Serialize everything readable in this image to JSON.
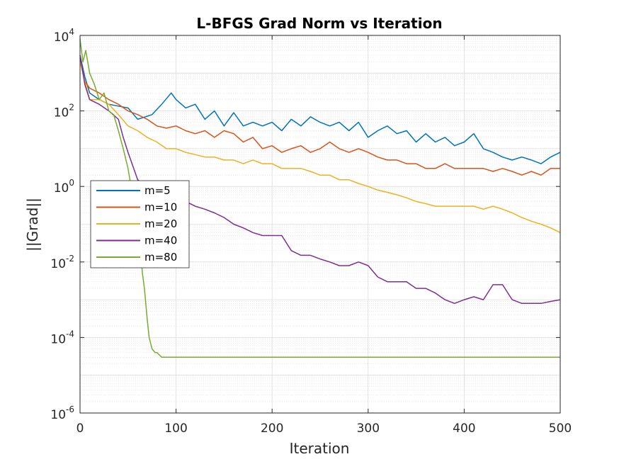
{
  "chart_data": {
    "type": "line",
    "title": "L-BFGS Grad Norm vs Iteration",
    "xlabel": "Iteration",
    "ylabel": "||Grad||",
    "xlim": [
      0,
      500
    ],
    "ylim": [
      1e-06,
      10000.0
    ],
    "yscale": "log",
    "grid": true,
    "minor_grid": true,
    "legend_position": "middle-left",
    "x_ticks": [
      "0",
      "100",
      "200",
      "300",
      "400",
      "500"
    ],
    "y_ticks": [
      {
        "base": "10",
        "exp": "-6"
      },
      {
        "base": "10",
        "exp": "-4"
      },
      {
        "base": "10",
        "exp": "-2"
      },
      {
        "base": "10",
        "exp": "0"
      },
      {
        "base": "10",
        "exp": "2"
      },
      {
        "base": "10",
        "exp": "4"
      }
    ],
    "series": [
      {
        "name": "m=5",
        "color": "#0072BD",
        "points": [
          [
            0,
            3000
          ],
          [
            5,
            800
          ],
          [
            10,
            300
          ],
          [
            20,
            200
          ],
          [
            30,
            150
          ],
          [
            50,
            120
          ],
          [
            60,
            60
          ],
          [
            75,
            80
          ],
          [
            85,
            150
          ],
          [
            95,
            300
          ],
          [
            100,
            200
          ],
          [
            110,
            120
          ],
          [
            120,
            150
          ],
          [
            130,
            60
          ],
          [
            140,
            100
          ],
          [
            150,
            40
          ],
          [
            160,
            90
          ],
          [
            170,
            40
          ],
          [
            180,
            50
          ],
          [
            190,
            40
          ],
          [
            200,
            50
          ],
          [
            210,
            30
          ],
          [
            220,
            60
          ],
          [
            230,
            40
          ],
          [
            240,
            70
          ],
          [
            250,
            50
          ],
          [
            260,
            40
          ],
          [
            270,
            50
          ],
          [
            280,
            30
          ],
          [
            290,
            50
          ],
          [
            300,
            20
          ],
          [
            310,
            30
          ],
          [
            320,
            40
          ],
          [
            330,
            25
          ],
          [
            340,
            30
          ],
          [
            350,
            15
          ],
          [
            360,
            25
          ],
          [
            370,
            15
          ],
          [
            380,
            20
          ],
          [
            390,
            12
          ],
          [
            400,
            15
          ],
          [
            410,
            25
          ],
          [
            420,
            10
          ],
          [
            430,
            8
          ],
          [
            440,
            6
          ],
          [
            450,
            5
          ],
          [
            460,
            6
          ],
          [
            470,
            5
          ],
          [
            480,
            4
          ],
          [
            490,
            6
          ],
          [
            500,
            8
          ]
        ]
      },
      {
        "name": "m=10",
        "color": "#D95319",
        "points": [
          [
            0,
            2500
          ],
          [
            5,
            600
          ],
          [
            10,
            400
          ],
          [
            20,
            300
          ],
          [
            30,
            200
          ],
          [
            40,
            150
          ],
          [
            50,
            100
          ],
          [
            60,
            80
          ],
          [
            70,
            60
          ],
          [
            80,
            40
          ],
          [
            90,
            35
          ],
          [
            100,
            40
          ],
          [
            110,
            30
          ],
          [
            120,
            25
          ],
          [
            130,
            30
          ],
          [
            140,
            20
          ],
          [
            150,
            30
          ],
          [
            160,
            25
          ],
          [
            170,
            15
          ],
          [
            180,
            20
          ],
          [
            190,
            10
          ],
          [
            200,
            12
          ],
          [
            210,
            8
          ],
          [
            220,
            10
          ],
          [
            230,
            12
          ],
          [
            240,
            8
          ],
          [
            250,
            10
          ],
          [
            260,
            15
          ],
          [
            270,
            10
          ],
          [
            280,
            8
          ],
          [
            290,
            10
          ],
          [
            300,
            8
          ],
          [
            310,
            6
          ],
          [
            320,
            5
          ],
          [
            330,
            5
          ],
          [
            340,
            4
          ],
          [
            350,
            4
          ],
          [
            360,
            3
          ],
          [
            370,
            3
          ],
          [
            380,
            4
          ],
          [
            390,
            3
          ],
          [
            400,
            3
          ],
          [
            410,
            3
          ],
          [
            420,
            3
          ],
          [
            430,
            2.5
          ],
          [
            440,
            3
          ],
          [
            450,
            2.5
          ],
          [
            460,
            2
          ],
          [
            470,
            2.5
          ],
          [
            480,
            2
          ],
          [
            490,
            3
          ],
          [
            500,
            3
          ]
        ]
      },
      {
        "name": "m=20",
        "color": "#EDB120",
        "points": [
          [
            0,
            2000
          ],
          [
            5,
            600
          ],
          [
            10,
            200
          ],
          [
            20,
            200
          ],
          [
            30,
            150
          ],
          [
            40,
            80
          ],
          [
            50,
            40
          ],
          [
            60,
            30
          ],
          [
            70,
            20
          ],
          [
            80,
            15
          ],
          [
            90,
            10
          ],
          [
            100,
            10
          ],
          [
            110,
            8
          ],
          [
            120,
            7
          ],
          [
            130,
            6
          ],
          [
            140,
            6
          ],
          [
            150,
            5
          ],
          [
            160,
            5
          ],
          [
            170,
            4
          ],
          [
            180,
            5
          ],
          [
            190,
            4
          ],
          [
            200,
            4
          ],
          [
            210,
            3
          ],
          [
            220,
            3
          ],
          [
            230,
            3
          ],
          [
            240,
            2.5
          ],
          [
            250,
            2
          ],
          [
            260,
            2
          ],
          [
            270,
            1.5
          ],
          [
            280,
            1.5
          ],
          [
            290,
            1.2
          ],
          [
            300,
            1
          ],
          [
            310,
            0.8
          ],
          [
            320,
            0.7
          ],
          [
            330,
            0.6
          ],
          [
            340,
            0.5
          ],
          [
            350,
            0.4
          ],
          [
            360,
            0.35
          ],
          [
            370,
            0.3
          ],
          [
            380,
            0.3
          ],
          [
            390,
            0.3
          ],
          [
            400,
            0.3
          ],
          [
            410,
            0.3
          ],
          [
            420,
            0.25
          ],
          [
            430,
            0.3
          ],
          [
            440,
            0.25
          ],
          [
            450,
            0.2
          ],
          [
            460,
            0.15
          ],
          [
            470,
            0.12
          ],
          [
            480,
            0.1
          ],
          [
            490,
            0.08
          ],
          [
            500,
            0.06
          ]
        ]
      },
      {
        "name": "m=40",
        "color": "#7E2F8E",
        "points": [
          [
            0,
            3000
          ],
          [
            5,
            500
          ],
          [
            10,
            200
          ],
          [
            20,
            150
          ],
          [
            30,
            100
          ],
          [
            40,
            60
          ],
          [
            45,
            20
          ],
          [
            50,
            8
          ],
          [
            60,
            1.5
          ],
          [
            70,
            1
          ],
          [
            80,
            0.8
          ],
          [
            90,
            0.6
          ],
          [
            100,
            0.5
          ],
          [
            110,
            0.4
          ],
          [
            120,
            0.3
          ],
          [
            130,
            0.25
          ],
          [
            140,
            0.2
          ],
          [
            150,
            0.15
          ],
          [
            160,
            0.1
          ],
          [
            170,
            0.08
          ],
          [
            180,
            0.06
          ],
          [
            190,
            0.05
          ],
          [
            200,
            0.05
          ],
          [
            210,
            0.05
          ],
          [
            220,
            0.02
          ],
          [
            230,
            0.015
          ],
          [
            240,
            0.015
          ],
          [
            250,
            0.012
          ],
          [
            260,
            0.01
          ],
          [
            270,
            0.008
          ],
          [
            280,
            0.008
          ],
          [
            290,
            0.01
          ],
          [
            300,
            0.008
          ],
          [
            310,
            0.004
          ],
          [
            320,
            0.003
          ],
          [
            330,
            0.003
          ],
          [
            340,
            0.003
          ],
          [
            350,
            0.002
          ],
          [
            360,
            0.002
          ],
          [
            370,
            0.0015
          ],
          [
            380,
            0.001
          ],
          [
            390,
            0.0008
          ],
          [
            400,
            0.001
          ],
          [
            410,
            0.0012
          ],
          [
            420,
            0.001
          ],
          [
            430,
            0.0025
          ],
          [
            440,
            0.0025
          ],
          [
            450,
            0.001
          ],
          [
            460,
            0.0008
          ],
          [
            470,
            0.0008
          ],
          [
            480,
            0.0008
          ],
          [
            490,
            0.0009
          ],
          [
            500,
            0.001
          ]
        ]
      },
      {
        "name": "m=80",
        "color": "#77AC30",
        "points": [
          [
            0,
            8000
          ],
          [
            3,
            2000
          ],
          [
            6,
            4000
          ],
          [
            10,
            1000
          ],
          [
            15,
            500
          ],
          [
            20,
            200
          ],
          [
            25,
            300
          ],
          [
            30,
            100
          ],
          [
            35,
            80
          ],
          [
            40,
            30
          ],
          [
            45,
            10
          ],
          [
            50,
            3
          ],
          [
            55,
            0.5
          ],
          [
            60,
            0.05
          ],
          [
            63,
            0.02
          ],
          [
            65,
            0.005
          ],
          [
            67,
            0.002
          ],
          [
            70,
            0.0003
          ],
          [
            72,
            0.0001
          ],
          [
            75,
            5e-05
          ],
          [
            78,
            4e-05
          ],
          [
            80,
            4e-05
          ],
          [
            85,
            3e-05
          ],
          [
            90,
            3e-05
          ],
          [
            100,
            3e-05
          ],
          [
            200,
            3e-05
          ],
          [
            300,
            3e-05
          ],
          [
            400,
            3e-05
          ],
          [
            500,
            3e-05
          ]
        ]
      }
    ]
  }
}
